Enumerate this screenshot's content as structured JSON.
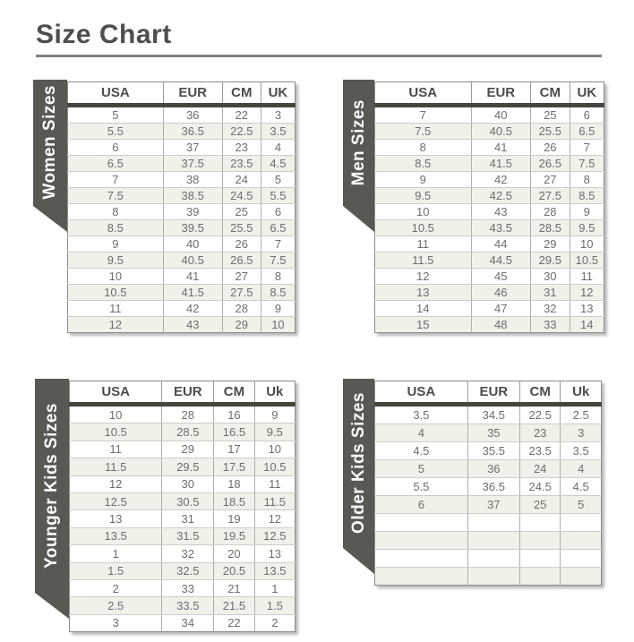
{
  "page": {
    "title": "Size Chart"
  },
  "colors": {
    "ribbon": "#565a52",
    "header_bar": "#42463d",
    "row_alt": "#f1f0e9"
  },
  "tables": [
    {
      "id": "women-sizes",
      "label": "Women Sizes",
      "headers": [
        "USA",
        "EUR",
        "CM",
        "UK"
      ],
      "rows": [
        [
          "5",
          "36",
          "22",
          "3"
        ],
        [
          "5.5",
          "36.5",
          "22.5",
          "3.5"
        ],
        [
          "6",
          "37",
          "23",
          "4"
        ],
        [
          "6.5",
          "37.5",
          "23.5",
          "4.5"
        ],
        [
          "7",
          "38",
          "24",
          "5"
        ],
        [
          "7.5",
          "38.5",
          "24.5",
          "5.5"
        ],
        [
          "8",
          "39",
          "25",
          "6"
        ],
        [
          "8.5",
          "39.5",
          "25.5",
          "6.5"
        ],
        [
          "9",
          "40",
          "26",
          "7"
        ],
        [
          "9.5",
          "40.5",
          "26.5",
          "7.5"
        ],
        [
          "10",
          "41",
          "27",
          "8"
        ],
        [
          "10.5",
          "41.5",
          "27.5",
          "8.5"
        ],
        [
          "11",
          "42",
          "28",
          "9"
        ],
        [
          "12",
          "43",
          "29",
          "10"
        ]
      ]
    },
    {
      "id": "men-sizes",
      "label": "Men Sizes",
      "headers": [
        "USA",
        "EUR",
        "CM",
        "UK"
      ],
      "rows": [
        [
          "7",
          "40",
          "25",
          "6"
        ],
        [
          "7.5",
          "40.5",
          "25.5",
          "6.5"
        ],
        [
          "8",
          "41",
          "26",
          "7"
        ],
        [
          "8.5",
          "41.5",
          "26.5",
          "7.5"
        ],
        [
          "9",
          "42",
          "27",
          "8"
        ],
        [
          "9.5",
          "42.5",
          "27.5",
          "8.5"
        ],
        [
          "10",
          "43",
          "28",
          "9"
        ],
        [
          "10.5",
          "43.5",
          "28.5",
          "9.5"
        ],
        [
          "11",
          "44",
          "29",
          "10"
        ],
        [
          "11.5",
          "44.5",
          "29.5",
          "10.5"
        ],
        [
          "12",
          "45",
          "30",
          "11"
        ],
        [
          "13",
          "46",
          "31",
          "12"
        ],
        [
          "14",
          "47",
          "32",
          "13"
        ],
        [
          "15",
          "48",
          "33",
          "14"
        ]
      ]
    },
    {
      "id": "younger-kids-sizes",
      "label": "Younger Kids Sizes",
      "headers": [
        "USA",
        "EUR",
        "CM",
        "Uk"
      ],
      "rows": [
        [
          "10",
          "28",
          "16",
          "9"
        ],
        [
          "10.5",
          "28.5",
          "16.5",
          "9.5"
        ],
        [
          "11",
          "29",
          "17",
          "10"
        ],
        [
          "11.5",
          "29.5",
          "17.5",
          "10.5"
        ],
        [
          "12",
          "30",
          "18",
          "11"
        ],
        [
          "12.5",
          "30.5",
          "18.5",
          "11.5"
        ],
        [
          "13",
          "31",
          "19",
          "12"
        ],
        [
          "13.5",
          "31.5",
          "19.5",
          "12.5"
        ],
        [
          "1",
          "32",
          "20",
          "13"
        ],
        [
          "1.5",
          "32.5",
          "20.5",
          "13.5"
        ],
        [
          "2",
          "33",
          "21",
          "1"
        ],
        [
          "2.5",
          "33.5",
          "21.5",
          "1.5"
        ],
        [
          "3",
          "34",
          "22",
          "2"
        ]
      ]
    },
    {
      "id": "older-kids-sizes",
      "label": "Older Kids Sizes",
      "headers": [
        "USA",
        "EUR",
        "CM",
        "Uk"
      ],
      "rows": [
        [
          "3.5",
          "34.5",
          "22.5",
          "2.5"
        ],
        [
          "4",
          "35",
          "23",
          "3"
        ],
        [
          "4.5",
          "35.5",
          "23.5",
          "3.5"
        ],
        [
          "5",
          "36",
          "24",
          "4"
        ],
        [
          "5.5",
          "36.5",
          "24.5",
          "4.5"
        ],
        [
          "6",
          "37",
          "25",
          "5"
        ],
        [
          "",
          "",
          "",
          ""
        ],
        [
          "",
          "",
          "",
          ""
        ],
        [
          "",
          "",
          "",
          ""
        ],
        [
          "",
          "",
          "",
          ""
        ]
      ]
    }
  ]
}
